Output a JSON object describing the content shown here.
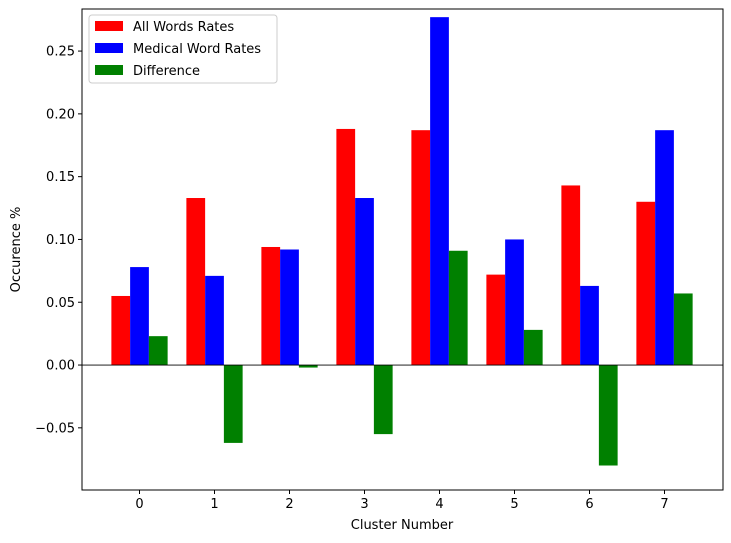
{
  "chart_data": {
    "type": "bar",
    "title": "",
    "xlabel": "Cluster Number",
    "ylabel": "Occurence %",
    "categories": [
      "0",
      "1",
      "2",
      "3",
      "4",
      "5",
      "6",
      "7"
    ],
    "series": [
      {
        "name": "All Words Rates",
        "color": "#ff0000",
        "values": [
          0.055,
          0.133,
          0.094,
          0.188,
          0.187,
          0.072,
          0.143,
          0.13
        ]
      },
      {
        "name": "Medical Word Rates",
        "color": "#0000ff",
        "values": [
          0.078,
          0.071,
          0.092,
          0.133,
          0.277,
          0.1,
          0.063,
          0.187
        ]
      },
      {
        "name": "Difference",
        "color": "#008000",
        "values": [
          0.023,
          -0.062,
          -0.002,
          -0.055,
          0.091,
          0.028,
          -0.08,
          0.057
        ]
      }
    ],
    "ylim": [
      -0.0995,
      0.2835
    ],
    "yticks": [
      -0.05,
      0.0,
      0.05,
      0.1,
      0.15,
      0.2,
      0.25
    ],
    "ytick_labels": [
      "−0.05",
      "0.00",
      "0.05",
      "0.10",
      "0.15",
      "0.20",
      "0.25"
    ],
    "grid": false,
    "legend_position": "top-left",
    "zero_line": true
  }
}
